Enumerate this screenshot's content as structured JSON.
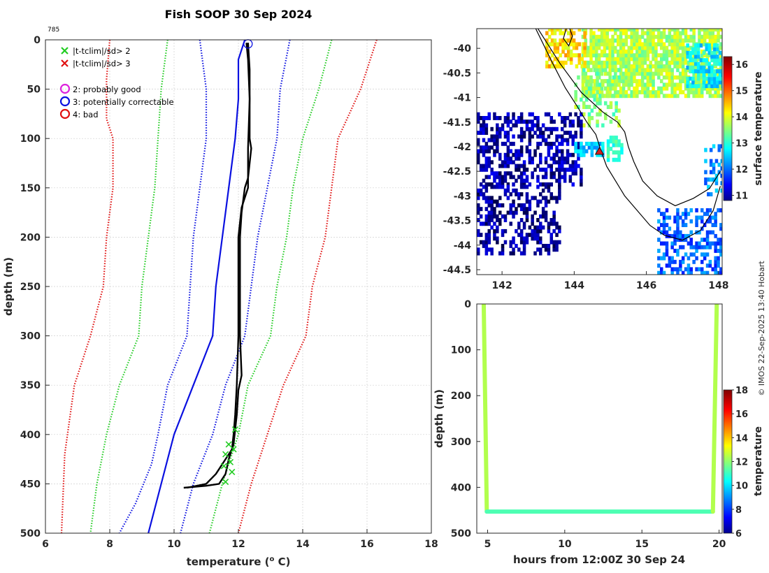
{
  "figure": {
    "title": "Fish SOOP 30 Sep 2024",
    "credit": "© IMOS 22-Sep-2025 13:40 Hobart"
  },
  "colors": {
    "black": "#000000",
    "blue": "#0a10e0",
    "green": "#22cc22",
    "red": "#e01010",
    "magenta": "#dd22dd",
    "grid": "#d0d0d0",
    "land_edge": "#000000",
    "marker_red": "#d42020"
  },
  "chart_data": [
    {
      "type": "line",
      "id": "profile",
      "title": "Fish SOOP 30 Sep 2024",
      "drop_id": "785",
      "xlabel": "temperature (° C)",
      "xlabel_main": "temperature (",
      "xlabel_sup": "o",
      "xlabel_end": " C)",
      "ylabel": "depth (m)",
      "xlim": [
        6,
        18
      ],
      "ylim": [
        500,
        0
      ],
      "xticks": [
        6,
        8,
        10,
        12,
        14,
        16,
        18
      ],
      "yticks": [
        0,
        50,
        100,
        150,
        200,
        250,
        300,
        350,
        400,
        450,
        500
      ],
      "grid": true,
      "legend": {
        "position": "top-left",
        "items": [
          {
            "label": "|t-tclim|/sd> 2",
            "marker": "x",
            "color": "#22cc22"
          },
          {
            "label": "|t-tclim|/sd> 3",
            "marker": "x",
            "color": "#e01010"
          },
          {
            "label": "2: probably good",
            "marker": "o",
            "color": "#dd22dd"
          },
          {
            "label": "3: potentially correctable",
            "marker": "o",
            "color": "#0a10e0"
          },
          {
            "label": "4: bad",
            "marker": "o",
            "color": "#e01010"
          }
        ]
      },
      "series": [
        {
          "name": "climatology -3sd",
          "style": "dotted",
          "color": "#e01010",
          "points": [
            [
              8.0,
              0
            ],
            [
              7.9,
              40
            ],
            [
              7.9,
              80
            ],
            [
              8.1,
              100
            ],
            [
              8.1,
              150
            ],
            [
              7.9,
              200
            ],
            [
              7.8,
              250
            ],
            [
              7.4,
              300
            ],
            [
              6.9,
              350
            ],
            [
              6.6,
              420
            ],
            [
              6.5,
              500
            ]
          ]
        },
        {
          "name": "climatology -2sd",
          "style": "dotted",
          "color": "#22cc22",
          "points": [
            [
              9.8,
              0
            ],
            [
              9.6,
              50
            ],
            [
              9.5,
              100
            ],
            [
              9.4,
              150
            ],
            [
              9.2,
              200
            ],
            [
              9.0,
              250
            ],
            [
              8.9,
              300
            ],
            [
              8.3,
              350
            ],
            [
              7.9,
              400
            ],
            [
              7.6,
              450
            ],
            [
              7.4,
              500
            ]
          ]
        },
        {
          "name": "climatology -1sd",
          "style": "dotted",
          "color": "#0a10e0",
          "points": [
            [
              10.8,
              0
            ],
            [
              11.0,
              50
            ],
            [
              11.0,
              100
            ],
            [
              10.8,
              150
            ],
            [
              10.6,
              200
            ],
            [
              10.5,
              250
            ],
            [
              10.4,
              300
            ],
            [
              9.8,
              350
            ],
            [
              9.5,
              400
            ],
            [
              9.3,
              430
            ],
            [
              8.8,
              470
            ],
            [
              8.3,
              500
            ]
          ]
        },
        {
          "name": "climatology mean",
          "style": "solid",
          "color": "#0a10e0",
          "points": [
            [
              12.2,
              0
            ],
            [
              12.0,
              20
            ],
            [
              12.0,
              60
            ],
            [
              11.9,
              100
            ],
            [
              11.7,
              150
            ],
            [
              11.5,
              200
            ],
            [
              11.3,
              250
            ],
            [
              11.2,
              300
            ],
            [
              10.6,
              350
            ],
            [
              10.0,
              400
            ],
            [
              9.6,
              450
            ],
            [
              9.2,
              500
            ]
          ]
        },
        {
          "name": "climatology +1sd",
          "style": "dotted",
          "color": "#0a10e0",
          "points": [
            [
              13.6,
              0
            ],
            [
              13.3,
              50
            ],
            [
              13.2,
              100
            ],
            [
              12.9,
              150
            ],
            [
              12.6,
              200
            ],
            [
              12.4,
              250
            ],
            [
              12.2,
              300
            ],
            [
              11.6,
              350
            ],
            [
              11.2,
              400
            ],
            [
              10.6,
              450
            ],
            [
              10.2,
              500
            ]
          ]
        },
        {
          "name": "climatology +2sd",
          "style": "dotted",
          "color": "#22cc22",
          "points": [
            [
              14.9,
              0
            ],
            [
              14.5,
              50
            ],
            [
              14.0,
              100
            ],
            [
              13.7,
              150
            ],
            [
              13.5,
              200
            ],
            [
              13.2,
              250
            ],
            [
              13.0,
              300
            ],
            [
              12.3,
              350
            ],
            [
              12.0,
              400
            ],
            [
              11.5,
              450
            ],
            [
              11.1,
              500
            ]
          ]
        },
        {
          "name": "climatology +3sd",
          "style": "dotted",
          "color": "#e01010",
          "points": [
            [
              16.3,
              0
            ],
            [
              15.8,
              50
            ],
            [
              15.1,
              100
            ],
            [
              14.9,
              150
            ],
            [
              14.7,
              200
            ],
            [
              14.3,
              250
            ],
            [
              14.1,
              300
            ],
            [
              13.4,
              350
            ],
            [
              12.9,
              400
            ],
            [
              12.4,
              450
            ],
            [
              12.0,
              500
            ]
          ]
        },
        {
          "name": "drop 1",
          "style": "solid",
          "color": "#000000",
          "points": [
            [
              12.25,
              3
            ],
            [
              12.3,
              20
            ],
            [
              12.35,
              60
            ],
            [
              12.3,
              110
            ],
            [
              12.3,
              150
            ],
            [
              12.1,
              170
            ],
            [
              12.0,
              200
            ],
            [
              12.0,
              250
            ],
            [
              12.0,
              300
            ],
            [
              11.95,
              350
            ],
            [
              11.9,
              380
            ],
            [
              11.85,
              400
            ],
            [
              11.8,
              415
            ],
            [
              11.6,
              425
            ],
            [
              11.3,
              440
            ],
            [
              11.0,
              450
            ],
            [
              10.4,
              454
            ]
          ]
        },
        {
          "name": "drop 2",
          "style": "solid",
          "color": "#000000",
          "points": [
            [
              12.3,
              3
            ],
            [
              12.35,
              30
            ],
            [
              12.35,
              100
            ],
            [
              12.4,
              110
            ],
            [
              12.3,
              140
            ],
            [
              12.2,
              150
            ],
            [
              12.1,
              175
            ],
            [
              12.05,
              200
            ],
            [
              12.05,
              250
            ],
            [
              12.05,
              300
            ],
            [
              12.1,
              340
            ],
            [
              12.0,
              355
            ],
            [
              11.95,
              380
            ],
            [
              11.85,
              410
            ],
            [
              11.7,
              425
            ],
            [
              11.6,
              440
            ],
            [
              11.4,
              450
            ],
            [
              11.0,
              452
            ],
            [
              10.3,
              454
            ]
          ]
        }
      ],
      "flag_markers": {
        "color": "#22cc22",
        "points": [
          [
            11.9,
            395
          ],
          [
            11.7,
            410
          ],
          [
            11.85,
            415
          ],
          [
            11.6,
            420
          ],
          [
            11.75,
            428
          ],
          [
            11.55,
            432
          ],
          [
            11.8,
            438
          ],
          [
            11.6,
            448
          ]
        ]
      },
      "flag_circle": {
        "label": "3: potentially correctable",
        "point": [
          12.3,
          2
        ],
        "color": "#0a10e0"
      }
    },
    {
      "type": "heatmap",
      "id": "sst_map",
      "xlim": [
        141.3,
        148.1
      ],
      "ylim": [
        -44.6,
        -39.6
      ],
      "xticks": [
        142,
        144,
        146,
        148
      ],
      "yticks": [
        -40,
        -40.5,
        -41,
        -41.5,
        -42,
        -42.5,
        -43,
        -43.5,
        -44,
        -44.5
      ],
      "colorbar": {
        "label": "surface temperature",
        "range": [
          10.8,
          16.3
        ],
        "ticks": [
          11,
          12,
          13,
          14,
          15,
          16
        ]
      },
      "coastline": [
        [
          [
            142.9,
            -39.55
          ],
          [
            143.4,
            -40.3
          ],
          [
            143.75,
            -40.8
          ],
          [
            144.1,
            -41.2
          ],
          [
            144.35,
            -41.5
          ],
          [
            144.6,
            -41.75
          ],
          [
            144.75,
            -42.1
          ],
          [
            144.9,
            -42.4
          ],
          [
            145.15,
            -42.7
          ],
          [
            145.4,
            -43.0
          ],
          [
            145.75,
            -43.3
          ],
          [
            146.1,
            -43.6
          ],
          [
            146.5,
            -43.8
          ],
          [
            147.0,
            -43.9
          ],
          [
            147.5,
            -43.7
          ],
          [
            147.85,
            -43.3
          ],
          [
            148.05,
            -42.8
          ]
        ],
        [
          [
            142.95,
            -39.55
          ],
          [
            143.6,
            -40.3
          ],
          [
            144.2,
            -40.9
          ],
          [
            144.8,
            -41.3
          ],
          [
            145.2,
            -41.5
          ],
          [
            145.4,
            -41.7
          ],
          [
            145.5,
            -42.0
          ],
          [
            145.65,
            -42.3
          ],
          [
            145.9,
            -42.7
          ],
          [
            146.3,
            -43.0
          ],
          [
            146.8,
            -43.2
          ],
          [
            147.3,
            -43.05
          ],
          [
            147.75,
            -42.85
          ],
          [
            148.05,
            -42.5
          ]
        ],
        [
          [
            143.85,
            -39.55
          ],
          [
            143.95,
            -39.75
          ],
          [
            143.85,
            -39.95
          ],
          [
            143.7,
            -39.8
          ],
          [
            143.8,
            -39.55
          ]
        ]
      ],
      "track_marker": {
        "lon": 144.7,
        "lat": -42.1,
        "color": "#d42020"
      },
      "patches": [
        {
          "lon": [
            144.2,
            148.1
          ],
          "lat": [
            -41.0,
            -39.6
          ],
          "temp": 13.8,
          "density": 0.82
        },
        {
          "lon": [
            147.1,
            148.1
          ],
          "lat": [
            -40.8,
            -39.9
          ],
          "temp": 12.8,
          "density": 0.7
        },
        {
          "lon": [
            143.2,
            144.3
          ],
          "lat": [
            -40.4,
            -39.6
          ],
          "temp": 14.4,
          "density": 0.55
        },
        {
          "lon": [
            144.0,
            145.2
          ],
          "lat": [
            -41.6,
            -40.4
          ],
          "temp": 13.6,
          "density": 0.35
        },
        {
          "lon": [
            141.3,
            144.2
          ],
          "lat": [
            -42.8,
            -41.3
          ],
          "temp": 11.0,
          "density": 0.48
        },
        {
          "lon": [
            141.3,
            143.6
          ],
          "lat": [
            -44.2,
            -42.8
          ],
          "temp": 10.9,
          "density": 0.45
        },
        {
          "lon": [
            144.0,
            144.8
          ],
          "lat": [
            -42.2,
            -41.9
          ],
          "temp": 12.6,
          "density": 0.7
        },
        {
          "lon": [
            144.9,
            145.3
          ],
          "lat": [
            -42.3,
            -41.8
          ],
          "temp": 13.2,
          "density": 0.6
        },
        {
          "lon": [
            146.3,
            148.1
          ],
          "lat": [
            -44.6,
            -43.3
          ],
          "temp": 12.0,
          "density": 0.5
        },
        {
          "lon": [
            147.6,
            148.1
          ],
          "lat": [
            -43.0,
            -42.0
          ],
          "temp": 12.3,
          "density": 0.35
        }
      ]
    },
    {
      "type": "scatter",
      "id": "depth_time",
      "xlabel": "hours from 12:00Z 30 Sep 24",
      "ylabel": "depth (m)",
      "xlim": [
        4.3,
        20.2
      ],
      "ylim": [
        500,
        0
      ],
      "xticks": [
        5,
        10,
        15,
        20
      ],
      "yticks": [
        0,
        100,
        200,
        300,
        400,
        500
      ],
      "colorbar": {
        "label": "temperature",
        "range": [
          6,
          18
        ],
        "ticks": [
          6,
          8,
          10,
          12,
          14,
          16,
          18
        ]
      },
      "segments": [
        {
          "x": [
            4.75,
            4.95
          ],
          "depth": [
            0,
            453
          ],
          "temp": 12.6
        },
        {
          "x": [
            4.95,
            19.6
          ],
          "depth": [
            453,
            453
          ],
          "temp": 11.4
        },
        {
          "x": [
            19.6,
            19.85
          ],
          "depth": [
            453,
            0
          ],
          "temp": 12.6
        }
      ]
    }
  ]
}
